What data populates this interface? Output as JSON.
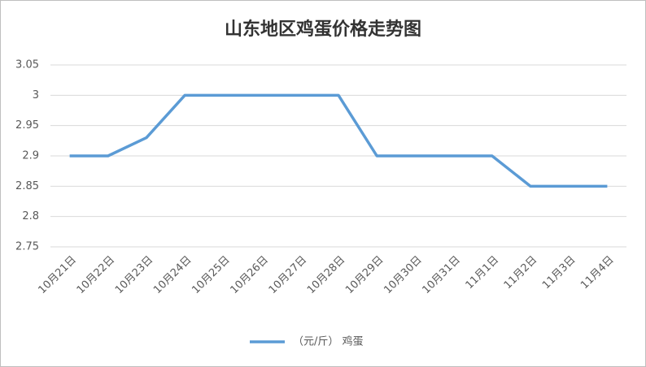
{
  "chart_data": {
    "type": "line",
    "title": "山东地区鸡蛋价格走势图",
    "categories": [
      "10月21日",
      "10月22日",
      "10月23日",
      "10月24日",
      "10月25日",
      "10月26日",
      "10月27日",
      "10月28日",
      "10月29日",
      "10月30日",
      "10月31日",
      "11月1日",
      "11月2日",
      "11月3日",
      "11月4日"
    ],
    "series": [
      {
        "name": "（元/斤） 鸡蛋",
        "color": "#5b9bd5",
        "values": [
          2.9,
          2.9,
          2.93,
          3,
          3,
          3,
          3,
          3,
          2.9,
          2.9,
          2.9,
          2.9,
          2.85,
          2.85,
          2.85
        ]
      }
    ],
    "ylim": [
      2.75,
      3.05
    ],
    "yticks": [
      2.75,
      2.8,
      2.85,
      2.9,
      2.95,
      3,
      3.05
    ],
    "grid": true,
    "legend": "bottom"
  }
}
